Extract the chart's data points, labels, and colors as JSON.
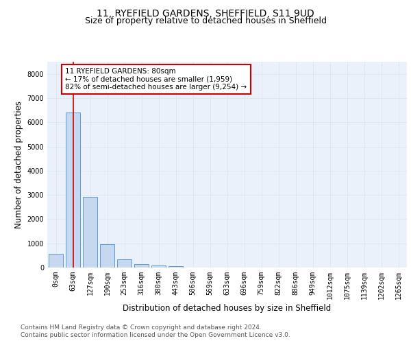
{
  "title_line1": "11, RYEFIELD GARDENS, SHEFFIELD, S11 9UD",
  "title_line2": "Size of property relative to detached houses in Sheffield",
  "xlabel": "Distribution of detached houses by size in Sheffield",
  "ylabel": "Number of detached properties",
  "bar_labels": [
    "0sqm",
    "63sqm",
    "127sqm",
    "190sqm",
    "253sqm",
    "316sqm",
    "380sqm",
    "443sqm",
    "506sqm",
    "569sqm",
    "633sqm",
    "696sqm",
    "759sqm",
    "822sqm",
    "886sqm",
    "949sqm",
    "1012sqm",
    "1075sqm",
    "1139sqm",
    "1202sqm",
    "1265sqm"
  ],
  "bar_values": [
    580,
    6400,
    2920,
    960,
    350,
    155,
    95,
    55,
    0,
    0,
    0,
    0,
    0,
    0,
    0,
    0,
    0,
    0,
    0,
    0,
    0
  ],
  "bar_color": "#c5d8f0",
  "bar_edge_color": "#5b9bd5",
  "property_line_x": 1,
  "annotation_text": "11 RYEFIELD GARDENS: 80sqm\n← 17% of detached houses are smaller (1,959)\n82% of semi-detached houses are larger (9,254) →",
  "annotation_box_color": "#cc0000",
  "ylim": [
    0,
    8500
  ],
  "yticks": [
    0,
    1000,
    2000,
    3000,
    4000,
    5000,
    6000,
    7000,
    8000
  ],
  "grid_color": "#dce6f1",
  "background_color": "#eaf1fb",
  "footer_line1": "Contains HM Land Registry data © Crown copyright and database right 2024.",
  "footer_line2": "Contains public sector information licensed under the Open Government Licence v3.0.",
  "title_fontsize": 10,
  "subtitle_fontsize": 9,
  "axis_label_fontsize": 8.5,
  "tick_fontsize": 7,
  "annotation_fontsize": 7.5,
  "footer_fontsize": 6.5
}
